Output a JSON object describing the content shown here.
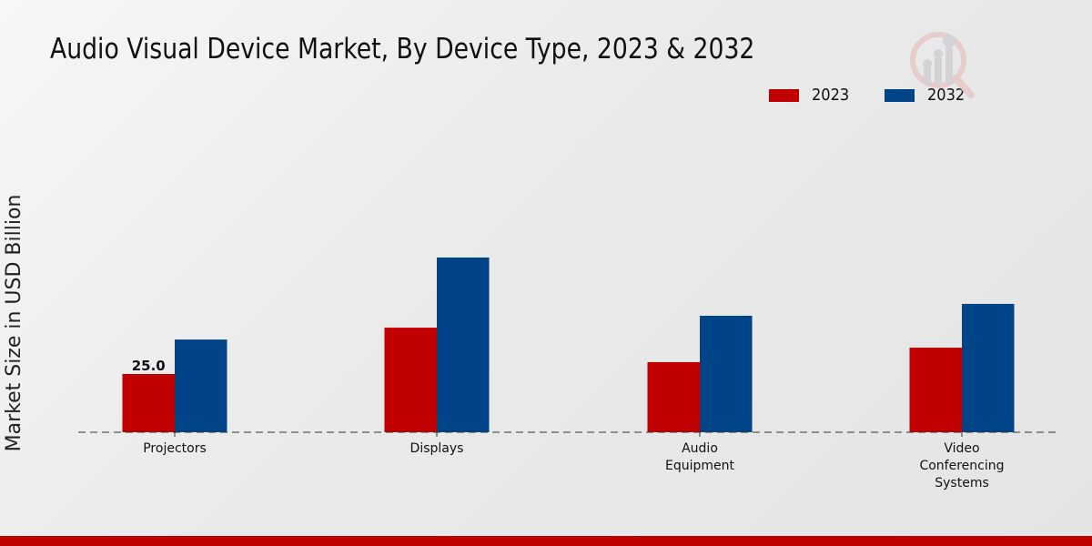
{
  "chart_data": {
    "type": "bar",
    "title": "Audio Visual Device Market, By Device Type, 2023 & 2032",
    "xlabel": "",
    "ylabel": "Market Size in USD Billion",
    "categories": [
      "Projectors",
      "Displays",
      "Audio Equipment",
      "Video Conferencing Systems"
    ],
    "category_lines": [
      [
        "Projectors"
      ],
      [
        "Displays"
      ],
      [
        "Audio",
        "Equipment"
      ],
      [
        "Video",
        "Conferencing",
        "Systems"
      ]
    ],
    "series": [
      {
        "name": "2023",
        "color": "#c00000",
        "values": [
          25.0,
          44.9,
          30.1,
          36.3
        ]
      },
      {
        "name": "2032",
        "color": "#004488",
        "values": [
          39.8,
          75.0,
          50.0,
          55.1
        ]
      }
    ],
    "data_labels": [
      {
        "series": 0,
        "category": 0,
        "text": "25.0"
      }
    ],
    "ylim": [
      0,
      90
    ],
    "grid": false,
    "legend_position": "top-right"
  },
  "legend": [
    {
      "label": "2023",
      "color": "#c00000"
    },
    {
      "label": "2032",
      "color": "#004488"
    }
  ],
  "footer_color": "#c00000"
}
